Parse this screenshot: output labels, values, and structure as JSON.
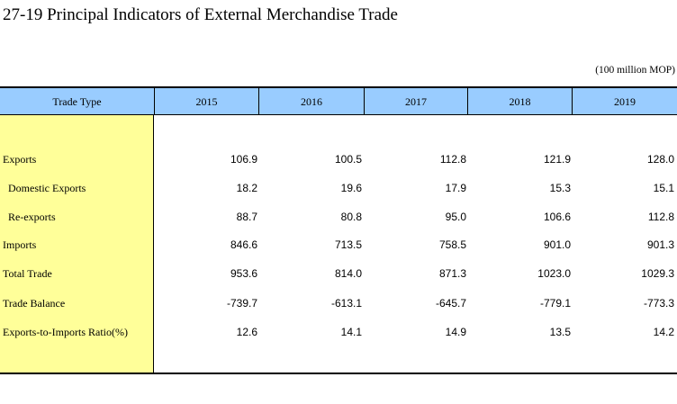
{
  "title": "27-19  Principal Indicators of External Merchandise Trade",
  "unit": "(100 million MOP)",
  "table": {
    "header": {
      "label": "Trade Type",
      "years": [
        "2015",
        "2016",
        "2017",
        "2018",
        "2019"
      ]
    },
    "rows": [
      {
        "label": "Exports",
        "values": [
          "106.9",
          "100.5",
          "112.8",
          "121.9",
          "128.0"
        ]
      },
      {
        "label": "Domestic Exports",
        "values": [
          "18.2",
          "19.6",
          "17.9",
          "15.3",
          "15.1"
        ]
      },
      {
        "label": "Re-exports",
        "values": [
          "88.7",
          "80.8",
          "95.0",
          "106.6",
          "112.8"
        ]
      },
      {
        "label": "Imports",
        "values": [
          "846.6",
          "713.5",
          "758.5",
          "901.0",
          "901.3"
        ]
      },
      {
        "label": "Total Trade",
        "values": [
          "953.6",
          "814.0",
          "871.3",
          "1023.0",
          "1029.3"
        ]
      },
      {
        "label": "Trade Balance",
        "values": [
          "-739.7",
          "-613.1",
          "-645.7",
          "-779.1",
          "-773.3"
        ]
      },
      {
        "label": "Exports-to-Imports Ratio(%)",
        "values": [
          "12.6",
          "14.1",
          "14.9",
          "13.5",
          "14.2"
        ]
      }
    ]
  },
  "colors": {
    "header_background": "#99ccff",
    "label_column_background": "#ffff99"
  }
}
